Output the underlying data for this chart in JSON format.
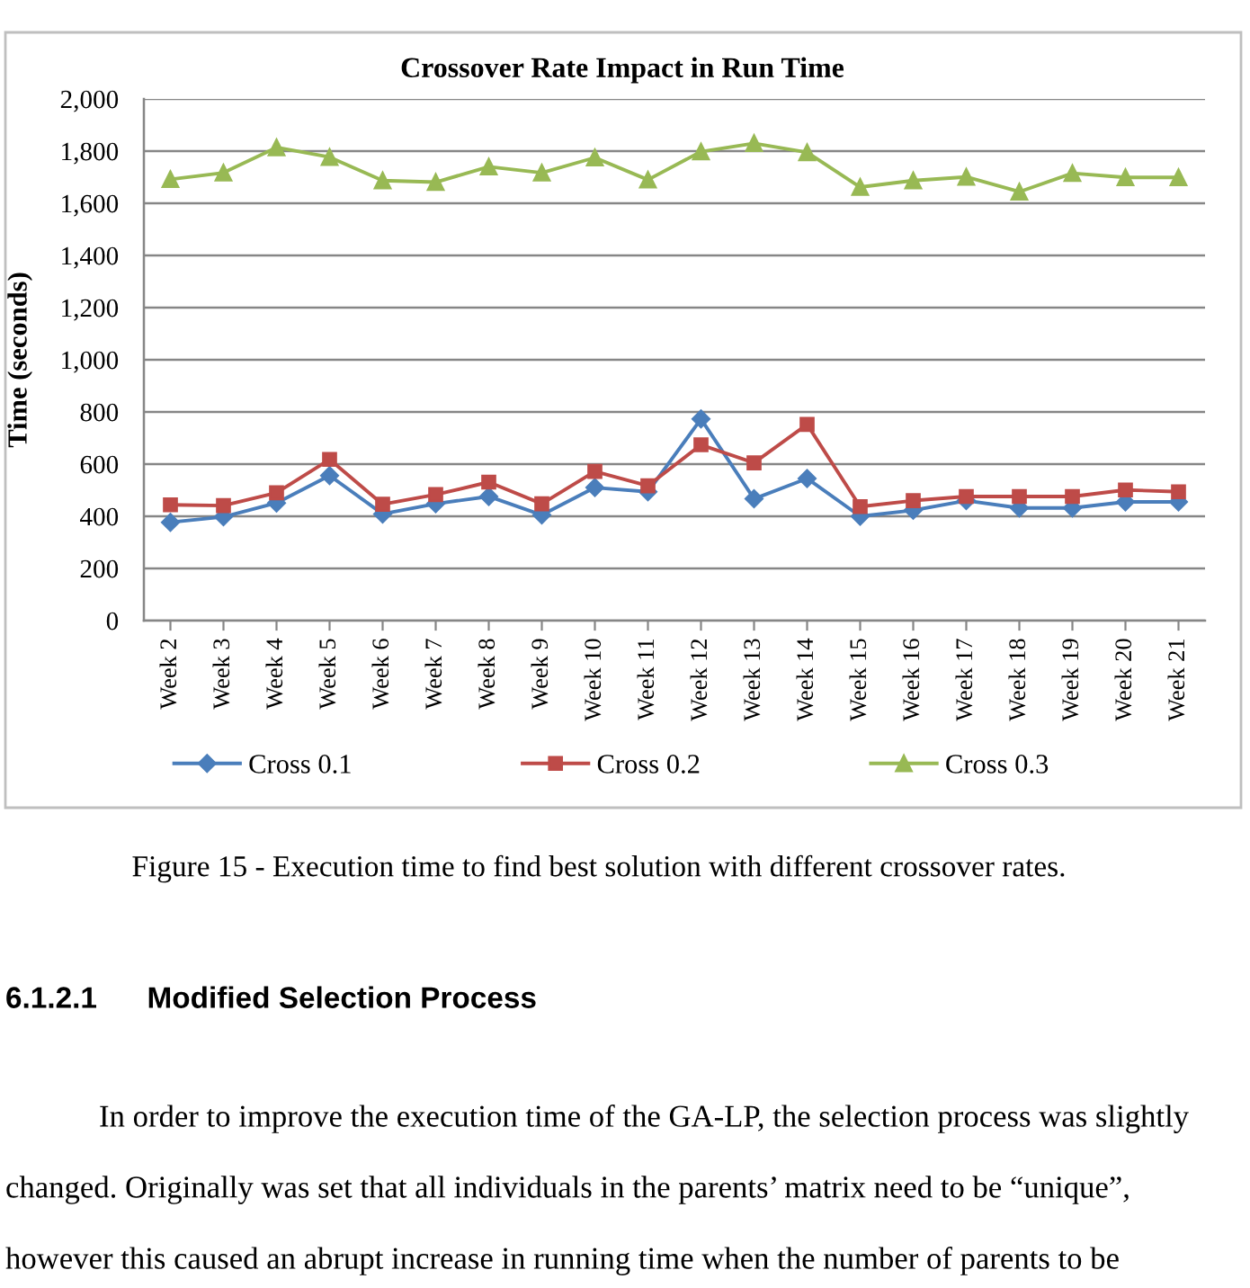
{
  "chart_data": {
    "type": "line",
    "title": "Crossover Rate Impact in Run Time",
    "ylabel": "Time (seconds)",
    "categories": [
      "Week 2",
      "Week 3",
      "Week 4",
      "Week 5",
      "Week 6",
      "Week 7",
      "Week 8",
      "Week 9",
      "Week 10",
      "Week 11",
      "Week 12",
      "Week 13",
      "Week 14",
      "Week 15",
      "Week 16",
      "Week 17",
      "Week 18",
      "Week 19",
      "Week 20",
      "Week 21"
    ],
    "series": [
      {
        "name": "Cross 0.1",
        "color": "#4a7ebb",
        "marker": "diamond",
        "values": [
          377,
          398,
          451,
          556,
          409,
          448,
          476,
          405,
          510,
          494,
          773,
          467,
          545,
          400,
          423,
          460,
          432,
          432,
          455,
          455
        ]
      },
      {
        "name": "Cross 0.2",
        "color": "#be4b48",
        "marker": "square",
        "values": [
          444,
          441,
          490,
          618,
          446,
          483,
          531,
          448,
          572,
          517,
          674,
          605,
          752,
          437,
          460,
          476,
          476,
          476,
          501,
          494
        ]
      },
      {
        "name": "Cross 0.3",
        "color": "#98b954",
        "marker": "triangle",
        "values": [
          1692,
          1717,
          1814,
          1777,
          1687,
          1681,
          1740,
          1717,
          1775,
          1690,
          1798,
          1830,
          1795,
          1662,
          1687,
          1701,
          1644,
          1715,
          1699,
          1699
        ]
      }
    ],
    "ylim": [
      0,
      2000
    ],
    "yticks": [
      0,
      200,
      400,
      600,
      800,
      {
        "value": 1000,
        "label": "1,000"
      },
      {
        "value": 1200,
        "label": "1,200"
      },
      {
        "value": 1400,
        "label": "1,400"
      },
      {
        "value": 1600,
        "label": "1,600"
      },
      {
        "value": 1800,
        "label": "1,800"
      },
      {
        "value": 2000,
        "label": "2,000"
      }
    ],
    "grid": "y",
    "legend": "bottom",
    "line_style": "solid",
    "annotations": [
      "Figure 15 - Execution time to find best solution with different crossover rates.",
      "6.1.2.1      Modified Selection Process",
      "In order to improve the execution time of the GA-LP, the selection process was slightly",
      "changed. Originally was set that all individuals in the parents’ matrix need to be “unique”,",
      "however this caused an abrupt increase in running time when the number of parents to be"
    ]
  }
}
